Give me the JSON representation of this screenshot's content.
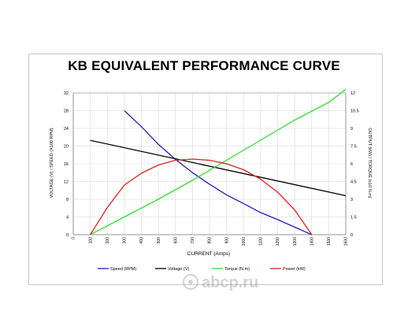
{
  "chart_data": {
    "type": "line",
    "title": "KB EQUIVALENT PERFORMANCE CURVE",
    "xlabel": "CURRENT (Amps)",
    "ylabel_left": "VOLTAGE (V) / SPEED (X100 RPM)",
    "ylabel_right": "OUTPUT (kW) / TORQUE (x10 N.m)",
    "x_ticks": [
      "0",
      "100",
      "200",
      "300",
      "400",
      "500",
      "600",
      "700",
      "800",
      "900",
      "1000",
      "1100",
      "1200",
      "1300",
      "1400",
      "1500",
      "1600"
    ],
    "y_left_ticks": [
      "0",
      "4",
      "8",
      "12",
      "16",
      "20",
      "24",
      "28",
      "32"
    ],
    "y_right_ticks": [
      "0",
      "1.5",
      "3",
      "4.5",
      "6",
      "7.5",
      "9",
      "10.5",
      "12"
    ],
    "xlim": [
      0,
      1600
    ],
    "ylim_left": [
      0,
      32
    ],
    "ylim_right": [
      0,
      12
    ],
    "grid": true,
    "legend_position": "bottom",
    "series": [
      {
        "name": "Speed (RPM)",
        "axis": "left",
        "color": "#1f1fbf",
        "x": [
          300,
          400,
          500,
          600,
          700,
          800,
          900,
          1000,
          1100,
          1200,
          1300,
          1400
        ],
        "y": [
          28,
          24.4,
          20.4,
          17,
          14,
          11.4,
          9,
          7,
          5,
          3.4,
          1.7,
          0
        ]
      },
      {
        "name": "Voltage (V)",
        "axis": "left",
        "color": "#000000",
        "x": [
          100,
          1600
        ],
        "y": [
          21.3,
          8.8
        ]
      },
      {
        "name": "Torque (N.m)",
        "axis": "right",
        "color": "#33dd33",
        "x": [
          100,
          300,
          500,
          700,
          900,
          1100,
          1300,
          1500,
          1600
        ],
        "y": [
          0,
          1.5,
          3,
          4.6,
          6.3,
          8.0,
          9.7,
          11.2,
          12.3
        ]
      },
      {
        "name": "Power (kW)",
        "axis": "right",
        "color": "#dd2222",
        "x": [
          100,
          200,
          300,
          400,
          500,
          600,
          700,
          800,
          900,
          1000,
          1100,
          1200,
          1300,
          1400
        ],
        "y": [
          0,
          2.3,
          4.2,
          5.2,
          5.9,
          6.3,
          6.4,
          6.3,
          6.0,
          5.5,
          4.7,
          3.6,
          2.1,
          0
        ]
      }
    ]
  },
  "watermark": {
    "text": "abcp.ru"
  }
}
